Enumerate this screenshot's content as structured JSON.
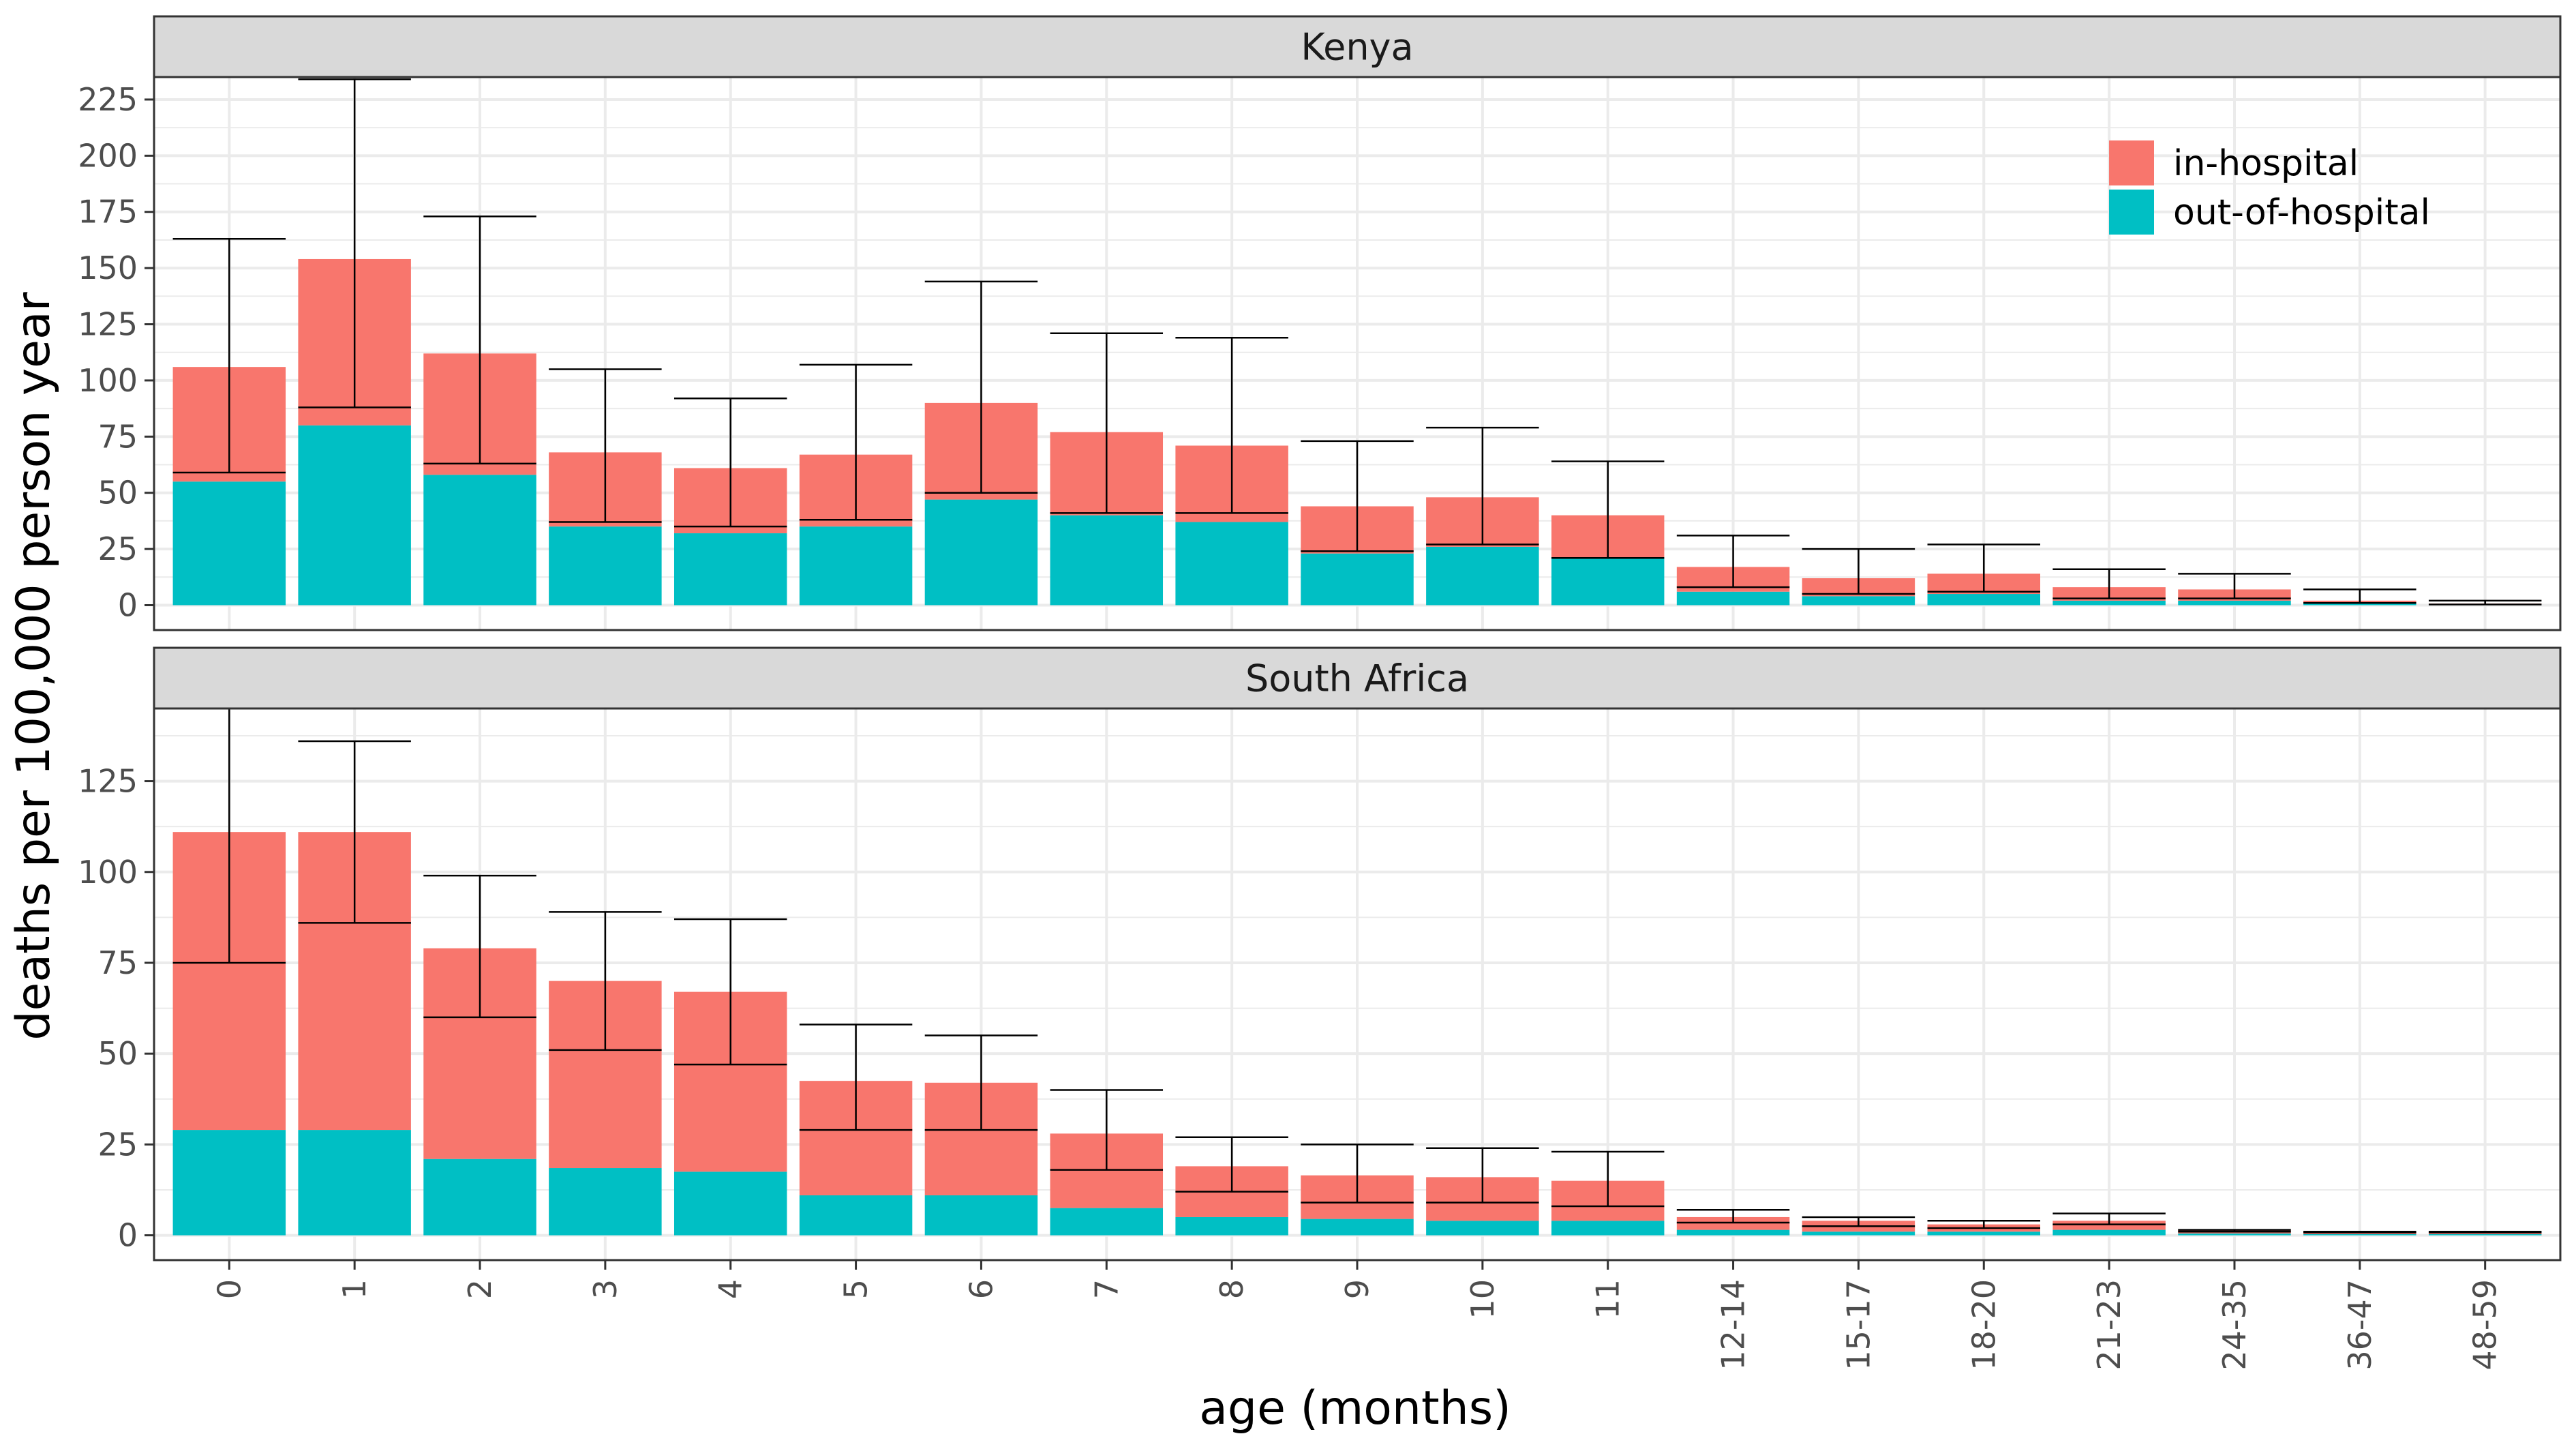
{
  "chart_data": {
    "type": "bar",
    "stacked": true,
    "xlabel": "age (months)",
    "ylabel": "deaths per 100,000 person year",
    "categories": [
      "0",
      "1",
      "2",
      "3",
      "4",
      "5",
      "6",
      "7",
      "8",
      "9",
      "10",
      "11",
      "12-14",
      "15-17",
      "18-20",
      "21-23",
      "24-35",
      "36-47",
      "48-59"
    ],
    "legend": {
      "position": "top-right",
      "entries": [
        {
          "name": "in-hospital",
          "color": "#F8766D"
        },
        {
          "name": "out-of-hospital",
          "color": "#00BFC4"
        }
      ]
    },
    "colors": {
      "in_hospital": "#F8766D",
      "out_of_hospital": "#00BFC4",
      "strip_bg": "#D9D9D9",
      "grid": "#EBEBEB",
      "panel_border": "#333333"
    },
    "grid": true,
    "panels": [
      {
        "title": "Kenya",
        "ylim": [
          0,
          235
        ],
        "yticks": [
          0,
          25,
          50,
          75,
          100,
          125,
          150,
          175,
          200,
          225
        ],
        "series": [
          {
            "name": "out-of-hospital",
            "values": [
              55,
              80,
              58,
              35,
              32,
              35,
              47,
              40,
              37,
              23,
              26,
              21,
              6,
              4,
              5,
              2,
              2,
              1,
              0.3
            ]
          },
          {
            "name": "in-hospital",
            "values": [
              51,
              74,
              54,
              33,
              29,
              32,
              43,
              37,
              34,
              21,
              22,
              19,
              11,
              8,
              9,
              6,
              5,
              1,
              0.4
            ]
          }
        ],
        "errorbars": [
          {
            "lower": 59,
            "upper": 163
          },
          {
            "lower": 88,
            "upper": 234
          },
          {
            "lower": 63,
            "upper": 173
          },
          {
            "lower": 37,
            "upper": 105
          },
          {
            "lower": 35,
            "upper": 92
          },
          {
            "lower": 38,
            "upper": 107
          },
          {
            "lower": 50,
            "upper": 144
          },
          {
            "lower": 41,
            "upper": 121
          },
          {
            "lower": 41,
            "upper": 119
          },
          {
            "lower": 24,
            "upper": 73
          },
          {
            "lower": 27,
            "upper": 79
          },
          {
            "lower": 21,
            "upper": 64
          },
          {
            "lower": 8,
            "upper": 31
          },
          {
            "lower": 5,
            "upper": 25
          },
          {
            "lower": 6,
            "upper": 27
          },
          {
            "lower": 3,
            "upper": 16
          },
          {
            "lower": 3,
            "upper": 14
          },
          {
            "lower": 1,
            "upper": 7
          },
          {
            "lower": 0.3,
            "upper": 2
          }
        ]
      },
      {
        "title": "South Africa",
        "ylim": [
          0,
          145
        ],
        "yticks": [
          0,
          25,
          50,
          75,
          100,
          125
        ],
        "series": [
          {
            "name": "out-of-hospital",
            "values": [
              29,
              29,
              21,
              18.5,
              17.5,
              11,
              11,
              7.5,
              5,
              4.5,
              4,
              4,
              1.5,
              1,
              1,
              1.5,
              0.5,
              0.3,
              0.3
            ]
          },
          {
            "name": "in-hospital",
            "values": [
              82,
              82,
              58,
              51.5,
              49.5,
              31.5,
              31,
              20.5,
              14,
              12,
              12,
              11,
              3.5,
              3,
              2,
              2.5,
              1,
              0.7,
              0.7
            ]
          }
        ],
        "errorbars": [
          {
            "lower": 75,
            "upper": 145
          },
          {
            "lower": 86,
            "upper": 136
          },
          {
            "lower": 60,
            "upper": 99
          },
          {
            "lower": 51,
            "upper": 89
          },
          {
            "lower": 47,
            "upper": 87
          },
          {
            "lower": 29,
            "upper": 58
          },
          {
            "lower": 29,
            "upper": 55
          },
          {
            "lower": 18,
            "upper": 40
          },
          {
            "lower": 12,
            "upper": 27
          },
          {
            "lower": 9,
            "upper": 25
          },
          {
            "lower": 9,
            "upper": 24
          },
          {
            "lower": 8,
            "upper": 23
          },
          {
            "lower": 3.5,
            "upper": 7
          },
          {
            "lower": 2.5,
            "upper": 5
          },
          {
            "lower": 2,
            "upper": 4
          },
          {
            "lower": 3,
            "upper": 6
          },
          {
            "lower": 1,
            "upper": 1.5
          },
          {
            "lower": 0.8,
            "upper": 1
          },
          {
            "lower": 0.8,
            "upper": 1
          }
        ]
      }
    ]
  }
}
